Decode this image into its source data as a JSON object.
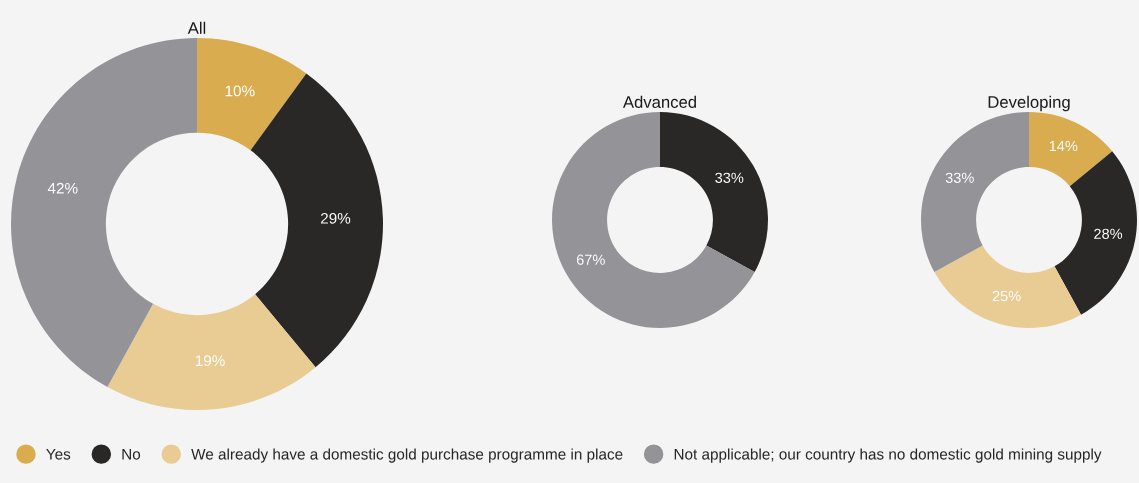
{
  "chart_data": [
    {
      "type": "donut",
      "title": "All",
      "categories": [
        "Yes",
        "No",
        "We already have a domestic gold purchase programme in place",
        "Not applicable; our country has no domestic gold mining supply"
      ],
      "values": [
        10,
        29,
        19,
        42
      ],
      "colors": [
        "#d9ad4f",
        "#2a2827",
        "#e8cc93",
        "#949397"
      ],
      "value_labels": [
        "10%",
        "29%",
        "19%",
        "42%"
      ],
      "legend": "bottom"
    },
    {
      "type": "donut",
      "title": "Advanced",
      "categories": [
        null,
        null,
        null,
        null
      ],
      "values": [
        0,
        33,
        0,
        67
      ],
      "colors": [
        "#d9ad4f",
        "#2a2827",
        "#e8cc93",
        "#949397"
      ],
      "value_labels": [
        null,
        "33%",
        null,
        "67%"
      ]
    },
    {
      "type": "donut",
      "title": "Developing",
      "categories": [
        null,
        null,
        null,
        null
      ],
      "values": [
        14,
        28,
        25,
        33
      ],
      "colors": [
        "#d9ad4f",
        "#2a2827",
        "#e8cc93",
        "#949397"
      ],
      "value_labels": [
        "14%",
        "28%",
        "25%",
        "33%"
      ]
    }
  ]
}
